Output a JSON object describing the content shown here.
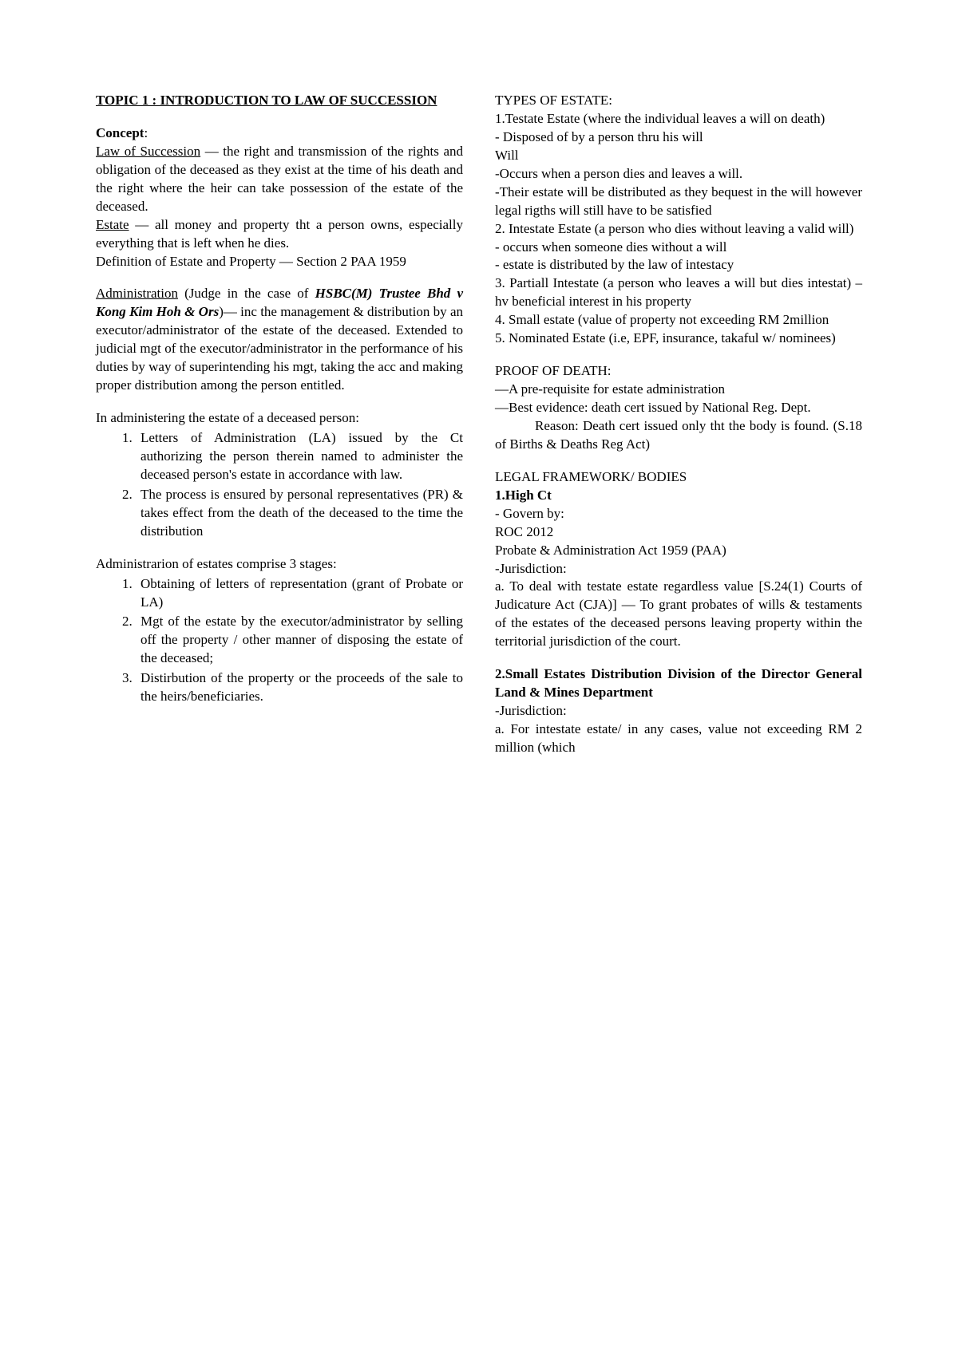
{
  "left": {
    "title": "TOPIC 1 : INTRODUCTION TO LAW OF SUCCESSION",
    "concept_label": "Concept",
    "los_label": "Law of Succession",
    "los_text": " — the right and transmission of the rights and obligation of the deceased as they exist at the time of his death and the right where the heir can take possession of the estate of the deceased.",
    "estate_label": "Estate",
    "estate_text": " — all money and property tht a person owns, especially everything that is left when he dies.",
    "def_estate": "Definition of Estate and Property — Section 2 PAA 1959",
    "admin_label": "Administration",
    "admin_text1": " (Judge in the case of ",
    "admin_case": "HSBC(M) Trustee Bhd v Kong Kim Hoh & Ors",
    "admin_text2": ")— inc the management & distribution by an executor/administrator of the estate of the deceased. Extended to judicial mgt of the executor/administrator in the performance of his duties by way of superintending his mgt, taking the acc and making proper distribution among the person entitled.",
    "admin_intro": "In administering the estate of a deceased person:",
    "admin_list": [
      "Letters of Administration (LA) issued by the Ct authorizing the person therein named to administer the deceased person's estate in accordance with law.",
      "The process is ensured by personal representatives (PR) & takes effect from the death of the deceased to the time the distribution"
    ],
    "stages_intro": "Administrarion of estates comprise 3 stages:",
    "stages_list": [
      "Obtaining of letters of representation (grant of Probate or LA)",
      "Mgt of the estate by the executor/administrator by selling off the property / other manner of disposing the estate of the deceased;",
      "Distirbution of the property or the proceeds of the sale to the heirs/beneficiaries."
    ]
  },
  "right": {
    "types_title": "TYPES OF ESTATE:",
    "t1": "1.Testate Estate (where the individual leaves a will on death)",
    "t1a": "- Disposed of by a person thru his will",
    "t1b": "Will",
    "t1c": "-Occurs when a person dies and leaves a will.",
    "t1d": "-Their estate will be distributed as they bequest in the will however legal rigths will still have to be satisfied",
    "t2": "2. Intestate Estate (a person who dies without leaving a valid will)",
    "t2a": "- occurs when someone dies without a will",
    "t2b": "- estate is distributed by the law of intestacy",
    "t3": "3. Partiall Intestate (a person who leaves a will but dies intestat) – hv beneficial interest in his property",
    "t4": "4. Small estate (value of property not exceeding RM 2million",
    "t5": "5. Nominated Estate (i.e, EPF, insurance, takaful w/ nominees)",
    "proof_title": "PROOF OF DEATH:",
    "p1": "—A pre-requisite for estate administration",
    "p2": "—Best evidence: death cert issued by National Reg. Dept.",
    "p3": "Reason: Death cert issued only tht the body is found. (S.18 of Births & Deaths Reg Act)",
    "legal_title": "LEGAL FRAMEWORK/ BODIES",
    "b1_title": "1.High Ct",
    "b1a": "- Govern by:",
    "b1b": "ROC 2012",
    "b1c": "Probate & Administration Act 1959 (PAA)",
    "b1d": "-Jurisdiction:",
    "b1e": "a. To deal with testate estate regardless value [S.24(1) Courts of Judicature Act (CJA)] — To grant probates of wills & testaments of the estates of the deceased persons leaving property within the territorial jurisdiction of the court.",
    "b2_title": "2.Small Estates Distribution Division of the Director General Land & Mines Department",
    "b2a": "-Jurisdiction:",
    "b2b": "a. For intestate estate/ in any cases, value not exceeding RM 2 million (which"
  }
}
